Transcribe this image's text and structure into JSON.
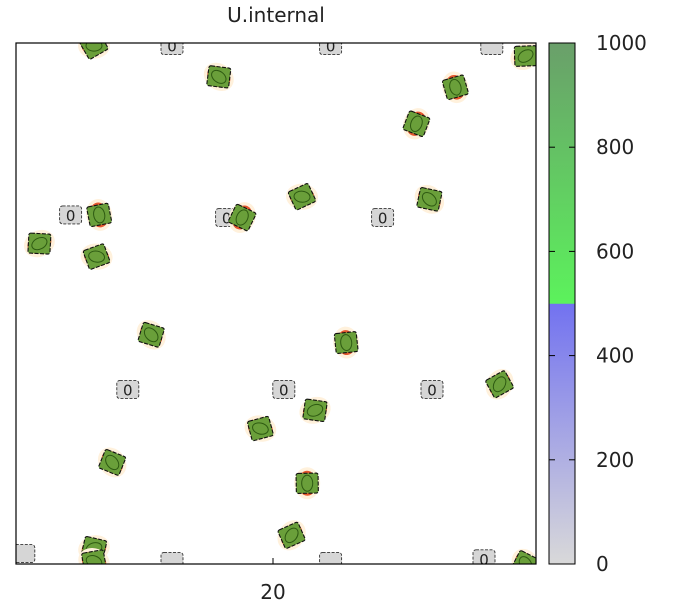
{
  "chart_data": {
    "type": "heatmap",
    "title": "U.internal",
    "xlabel": "",
    "ylabel": "",
    "x_tick_labels": [
      "20"
    ],
    "colorbar": {
      "min": 0,
      "max": 1000,
      "ticks": [
        0,
        200,
        400,
        600,
        800,
        1000
      ],
      "tick_labels": [
        "0",
        "200",
        "400",
        "600",
        "800",
        "1000"
      ],
      "colors": {
        "low": "#d9d9d9",
        "mid_low": "#7272f0",
        "mid_high": "#5cf25c",
        "high": "#6a9f6a"
      }
    },
    "contour_label": "0",
    "hot_blobs": [
      {
        "x": 0.15,
        "y": 0.995,
        "value": 900
      },
      {
        "x": 0.39,
        "y": 0.935,
        "value": 900
      },
      {
        "x": 0.845,
        "y": 0.915,
        "value": 900
      },
      {
        "x": 0.77,
        "y": 0.845,
        "value": 900
      },
      {
        "x": 0.98,
        "y": 0.975,
        "value": 900
      },
      {
        "x": 0.55,
        "y": 0.705,
        "value": 900
      },
      {
        "x": 0.795,
        "y": 0.7,
        "value": 900
      },
      {
        "x": 0.16,
        "y": 0.67,
        "value": 900
      },
      {
        "x": 0.435,
        "y": 0.665,
        "value": 900
      },
      {
        "x": 0.045,
        "y": 0.615,
        "value": 900
      },
      {
        "x": 0.155,
        "y": 0.59,
        "value": 900
      },
      {
        "x": 0.26,
        "y": 0.44,
        "value": 900
      },
      {
        "x": 0.635,
        "y": 0.425,
        "value": 900
      },
      {
        "x": 0.93,
        "y": 0.345,
        "value": 900
      },
      {
        "x": 0.575,
        "y": 0.295,
        "value": 900
      },
      {
        "x": 0.47,
        "y": 0.26,
        "value": 900
      },
      {
        "x": 0.185,
        "y": 0.195,
        "value": 900
      },
      {
        "x": 0.56,
        "y": 0.155,
        "value": 900
      },
      {
        "x": 0.53,
        "y": 0.055,
        "value": 900
      },
      {
        "x": 0.15,
        "y": 0.03,
        "value": 900
      },
      {
        "x": 0.15,
        "y": 0.005,
        "value": 900
      },
      {
        "x": 0.98,
        "y": 0.0,
        "value": 900
      }
    ],
    "cold_patches": [
      {
        "x": 0.3,
        "y": 0.995,
        "labeled": true
      },
      {
        "x": 0.605,
        "y": 0.995,
        "labeled": true
      },
      {
        "x": 0.105,
        "y": 0.67,
        "labeled": true
      },
      {
        "x": 0.405,
        "y": 0.665,
        "labeled": true
      },
      {
        "x": 0.705,
        "y": 0.665,
        "labeled": true
      },
      {
        "x": 0.215,
        "y": 0.335,
        "labeled": true
      },
      {
        "x": 0.515,
        "y": 0.335,
        "labeled": true
      },
      {
        "x": 0.8,
        "y": 0.335,
        "labeled": true
      },
      {
        "x": 0.9,
        "y": 0.01,
        "labeled": true
      },
      {
        "x": 0.915,
        "y": 0.995,
        "labeled": false
      },
      {
        "x": 0.015,
        "y": 0.02,
        "labeled": false
      },
      {
        "x": 0.3,
        "y": 0.005,
        "labeled": false
      },
      {
        "x": 0.605,
        "y": 0.005,
        "labeled": false
      }
    ]
  }
}
